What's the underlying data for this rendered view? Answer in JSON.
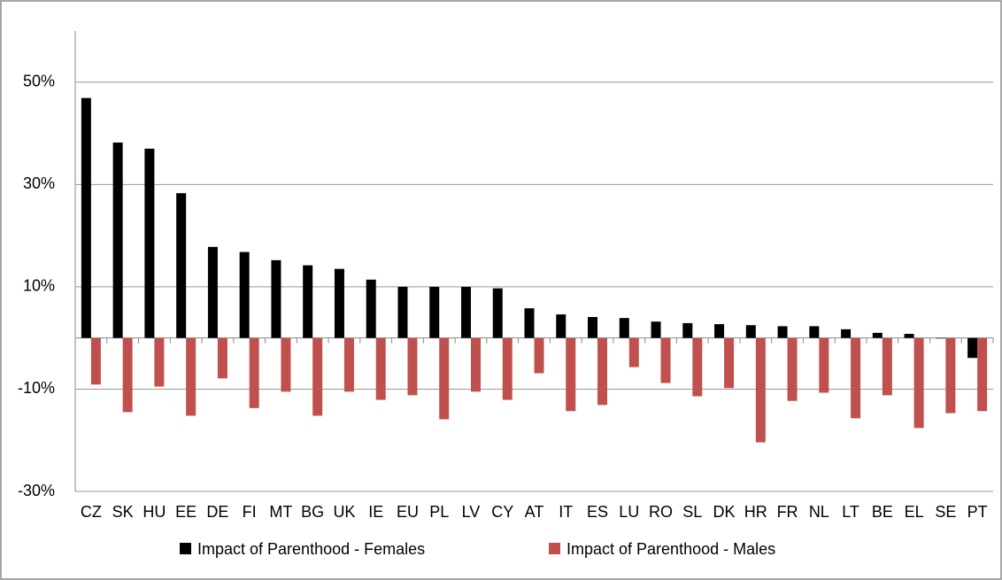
{
  "chart_data": {
    "type": "bar",
    "categories": [
      "CZ",
      "SK",
      "HU",
      "EE",
      "DE",
      "FI",
      "MT",
      "BG",
      "UK",
      "IE",
      "EU",
      "PL",
      "LV",
      "CY",
      "AT",
      "IT",
      "ES",
      "LU",
      "RO",
      "SL",
      "DK",
      "HR",
      "FR",
      "NL",
      "LT",
      "BE",
      "EL",
      "SE",
      "PT"
    ],
    "series": [
      {
        "name": "Impact of Parenthood - Females",
        "color": "#000000",
        "values": [
          46.9,
          38.2,
          37,
          28.3,
          17.8,
          16.8,
          15.2,
          14.2,
          13.5,
          11.4,
          10,
          10,
          10,
          9.7,
          5.8,
          4.6,
          4.1,
          3.9,
          3.2,
          2.9,
          2.7,
          2.5,
          2.3,
          2.3,
          1.7,
          1.0,
          0.8,
          -0.1,
          -3.9
        ]
      },
      {
        "name": "Impact of Parenthood - Males",
        "color": "#c0504d",
        "values": [
          -9.1,
          -14.5,
          -9.5,
          -15.2,
          -7.9,
          -13.7,
          -10.5,
          -15.2,
          -10.5,
          -12.1,
          -11.2,
          -15.9,
          -10.5,
          -12.1,
          -6.9,
          -14.3,
          -13.1,
          -5.7,
          -8.8,
          -11.4,
          -9.8,
          -20.4,
          -12.3,
          -10.7,
          -15.7,
          -11.2,
          -17.6,
          -14.7,
          -14.3
        ]
      }
    ],
    "ylim": [
      -30,
      60
    ],
    "yticks": [
      {
        "value": -30,
        "label": "-30%"
      },
      {
        "value": -10,
        "label": "-10%"
      },
      {
        "value": 10,
        "label": "10%"
      },
      {
        "value": 30,
        "label": "30%"
      },
      {
        "value": 50,
        "label": "50%"
      }
    ],
    "grid": true,
    "legend": "bottom"
  }
}
